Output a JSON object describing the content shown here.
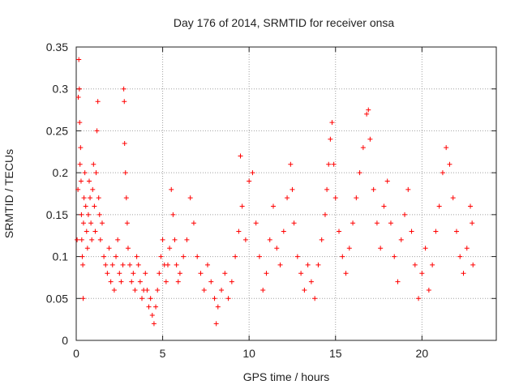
{
  "chart_data": {
    "type": "scatter",
    "title": "Day 176 of 2014, SRMTID for receiver onsa",
    "xlabel": "GPS time / hours",
    "ylabel": "SRMTID / TECUs",
    "xlim": [
      0,
      24.3
    ],
    "ylim": [
      0,
      0.35
    ],
    "xticks": [
      0,
      5,
      10,
      15,
      20
    ],
    "xtick_labels": [
      "0",
      "5",
      "10",
      "15",
      "20"
    ],
    "yticks": [
      0,
      0.05,
      0.1,
      0.15,
      0.2,
      0.25,
      0.3,
      0.35
    ],
    "ytick_labels": [
      "0",
      "0.05",
      "0.1",
      "0.15",
      "0.2",
      "0.25",
      "0.3",
      "0.35"
    ],
    "grid": true,
    "marker": "+",
    "marker_color": "#ff0000",
    "series": [
      {
        "name": "onsa",
        "points": [
          [
            0.05,
            0.12
          ],
          [
            0.1,
            0.18
          ],
          [
            0.12,
            0.29
          ],
          [
            0.15,
            0.335
          ],
          [
            0.18,
            0.3
          ],
          [
            0.2,
            0.26
          ],
          [
            0.22,
            0.21
          ],
          [
            0.25,
            0.23
          ],
          [
            0.28,
            0.19
          ],
          [
            0.3,
            0.15
          ],
          [
            0.32,
            0.12
          ],
          [
            0.35,
            0.1
          ],
          [
            0.38,
            0.09
          ],
          [
            0.4,
            0.05
          ],
          [
            0.42,
            0.14
          ],
          [
            0.45,
            0.17
          ],
          [
            0.5,
            0.2
          ],
          [
            0.55,
            0.16
          ],
          [
            0.6,
            0.13
          ],
          [
            0.65,
            0.11
          ],
          [
            0.7,
            0.15
          ],
          [
            0.75,
            0.19
          ],
          [
            0.8,
            0.17
          ],
          [
            0.85,
            0.14
          ],
          [
            0.9,
            0.12
          ],
          [
            0.95,
            0.18
          ],
          [
            1.0,
            0.21
          ],
          [
            1.05,
            0.16
          ],
          [
            1.1,
            0.13
          ],
          [
            1.15,
            0.2
          ],
          [
            1.2,
            0.25
          ],
          [
            1.25,
            0.285
          ],
          [
            1.3,
            0.17
          ],
          [
            1.35,
            0.15
          ],
          [
            1.4,
            0.12
          ],
          [
            1.5,
            0.14
          ],
          [
            1.6,
            0.1
          ],
          [
            1.7,
            0.09
          ],
          [
            1.8,
            0.08
          ],
          [
            1.9,
            0.11
          ],
          [
            2.0,
            0.07
          ],
          [
            2.1,
            0.09
          ],
          [
            2.2,
            0.06
          ],
          [
            2.3,
            0.1
          ],
          [
            2.4,
            0.12
          ],
          [
            2.5,
            0.08
          ],
          [
            2.6,
            0.07
          ],
          [
            2.7,
            0.09
          ],
          [
            2.75,
            0.3
          ],
          [
            2.78,
            0.285
          ],
          [
            2.8,
            0.235
          ],
          [
            2.85,
            0.2
          ],
          [
            2.9,
            0.17
          ],
          [
            2.95,
            0.14
          ],
          [
            3.0,
            0.11
          ],
          [
            3.1,
            0.09
          ],
          [
            3.2,
            0.07
          ],
          [
            3.3,
            0.08
          ],
          [
            3.4,
            0.06
          ],
          [
            3.5,
            0.1
          ],
          [
            3.6,
            0.09
          ],
          [
            3.7,
            0.07
          ],
          [
            3.8,
            0.05
          ],
          [
            3.9,
            0.06
          ],
          [
            4.0,
            0.08
          ],
          [
            4.1,
            0.06
          ],
          [
            4.2,
            0.04
          ],
          [
            4.3,
            0.05
          ],
          [
            4.4,
            0.03
          ],
          [
            4.5,
            0.02
          ],
          [
            4.6,
            0.04
          ],
          [
            4.7,
            0.06
          ],
          [
            4.8,
            0.08
          ],
          [
            4.9,
            0.1
          ],
          [
            5.0,
            0.12
          ],
          [
            5.1,
            0.09
          ],
          [
            5.2,
            0.07
          ],
          [
            5.3,
            0.09
          ],
          [
            5.4,
            0.11
          ],
          [
            5.5,
            0.18
          ],
          [
            5.6,
            0.15
          ],
          [
            5.7,
            0.12
          ],
          [
            5.8,
            0.09
          ],
          [
            5.9,
            0.07
          ],
          [
            6.0,
            0.08
          ],
          [
            6.2,
            0.1
          ],
          [
            6.4,
            0.12
          ],
          [
            6.6,
            0.17
          ],
          [
            6.8,
            0.14
          ],
          [
            7.0,
            0.1
          ],
          [
            7.2,
            0.08
          ],
          [
            7.4,
            0.06
          ],
          [
            7.6,
            0.09
          ],
          [
            7.8,
            0.07
          ],
          [
            8.0,
            0.05
          ],
          [
            8.1,
            0.02
          ],
          [
            8.2,
            0.04
          ],
          [
            8.4,
            0.06
          ],
          [
            8.6,
            0.08
          ],
          [
            8.8,
            0.05
          ],
          [
            9.0,
            0.07
          ],
          [
            9.2,
            0.1
          ],
          [
            9.4,
            0.13
          ],
          [
            9.5,
            0.22
          ],
          [
            9.6,
            0.16
          ],
          [
            9.8,
            0.12
          ],
          [
            10.0,
            0.19
          ],
          [
            10.2,
            0.2
          ],
          [
            10.4,
            0.14
          ],
          [
            10.6,
            0.1
          ],
          [
            10.8,
            0.06
          ],
          [
            11.0,
            0.08
          ],
          [
            11.2,
            0.12
          ],
          [
            11.4,
            0.16
          ],
          [
            11.6,
            0.11
          ],
          [
            11.8,
            0.09
          ],
          [
            12.0,
            0.13
          ],
          [
            12.2,
            0.17
          ],
          [
            12.4,
            0.21
          ],
          [
            12.5,
            0.18
          ],
          [
            12.6,
            0.14
          ],
          [
            12.8,
            0.1
          ],
          [
            13.0,
            0.08
          ],
          [
            13.2,
            0.06
          ],
          [
            13.4,
            0.09
          ],
          [
            13.6,
            0.07
          ],
          [
            13.8,
            0.05
          ],
          [
            14.0,
            0.09
          ],
          [
            14.2,
            0.12
          ],
          [
            14.4,
            0.15
          ],
          [
            14.5,
            0.18
          ],
          [
            14.6,
            0.21
          ],
          [
            14.7,
            0.24
          ],
          [
            14.8,
            0.26
          ],
          [
            14.9,
            0.21
          ],
          [
            15.0,
            0.17
          ],
          [
            15.2,
            0.13
          ],
          [
            15.4,
            0.1
          ],
          [
            15.6,
            0.08
          ],
          [
            15.8,
            0.11
          ],
          [
            16.0,
            0.14
          ],
          [
            16.2,
            0.17
          ],
          [
            16.4,
            0.2
          ],
          [
            16.6,
            0.23
          ],
          [
            16.8,
            0.27
          ],
          [
            16.9,
            0.275
          ],
          [
            17.0,
            0.24
          ],
          [
            17.2,
            0.18
          ],
          [
            17.4,
            0.14
          ],
          [
            17.6,
            0.11
          ],
          [
            17.8,
            0.16
          ],
          [
            18.0,
            0.19
          ],
          [
            18.2,
            0.14
          ],
          [
            18.4,
            0.1
          ],
          [
            18.6,
            0.07
          ],
          [
            18.8,
            0.12
          ],
          [
            19.0,
            0.15
          ],
          [
            19.2,
            0.18
          ],
          [
            19.4,
            0.13
          ],
          [
            19.6,
            0.09
          ],
          [
            19.8,
            0.05
          ],
          [
            20.0,
            0.08
          ],
          [
            20.2,
            0.11
          ],
          [
            20.4,
            0.06
          ],
          [
            20.6,
            0.09
          ],
          [
            20.8,
            0.13
          ],
          [
            21.0,
            0.16
          ],
          [
            21.2,
            0.2
          ],
          [
            21.4,
            0.23
          ],
          [
            21.6,
            0.21
          ],
          [
            21.8,
            0.17
          ],
          [
            22.0,
            0.13
          ],
          [
            22.2,
            0.1
          ],
          [
            22.4,
            0.08
          ],
          [
            22.6,
            0.11
          ],
          [
            22.8,
            0.16
          ],
          [
            22.9,
            0.14
          ],
          [
            22.95,
            0.09
          ]
        ]
      }
    ]
  }
}
